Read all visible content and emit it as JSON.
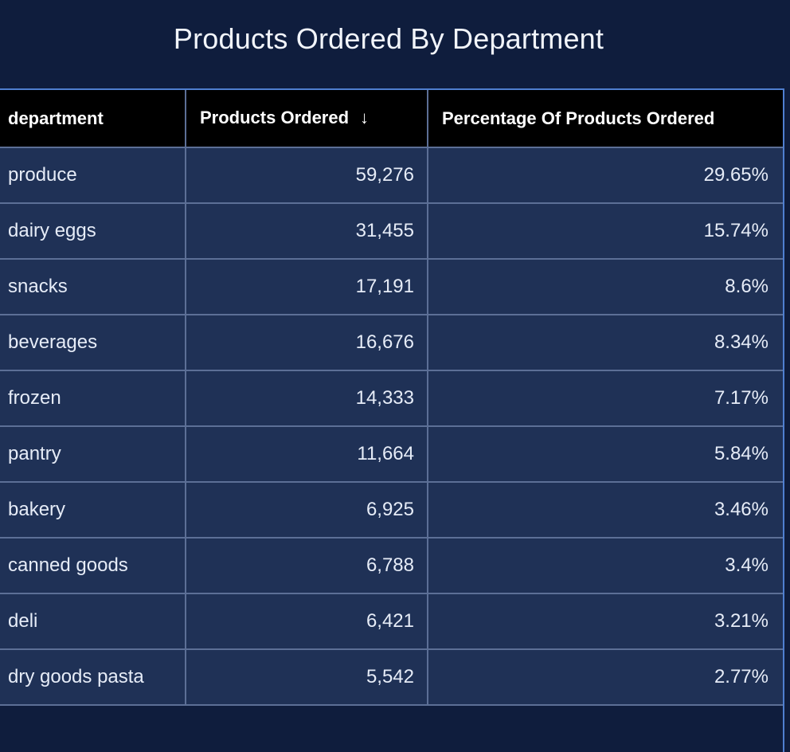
{
  "chart_data": {
    "type": "table",
    "title": "Products Ordered By Department",
    "columns": [
      "department",
      "Products Ordered",
      "Percentage Of Products Ordered"
    ],
    "sort": {
      "column": "Products Ordered",
      "direction": "descending",
      "indicator": "↓"
    },
    "rows": [
      {
        "department": "produce",
        "products_ordered": "59,276",
        "percentage": "29.65%"
      },
      {
        "department": "dairy eggs",
        "products_ordered": "31,455",
        "percentage": "15.74%"
      },
      {
        "department": "snacks",
        "products_ordered": "17,191",
        "percentage": "8.6%"
      },
      {
        "department": "beverages",
        "products_ordered": "16,676",
        "percentage": "8.34%"
      },
      {
        "department": "frozen",
        "products_ordered": "14,333",
        "percentage": "7.17%"
      },
      {
        "department": "pantry",
        "products_ordered": "11,664",
        "percentage": "5.84%"
      },
      {
        "department": "bakery",
        "products_ordered": "6,925",
        "percentage": "3.46%"
      },
      {
        "department": "canned goods",
        "products_ordered": "6,788",
        "percentage": "3.4%"
      },
      {
        "department": "deli",
        "products_ordered": "6,421",
        "percentage": "3.21%"
      },
      {
        "department": "dry goods pasta",
        "products_ordered": "5,542",
        "percentage": "2.77%"
      }
    ]
  },
  "colors": {
    "page_background": "#0f1d3d",
    "header_background": "#000000",
    "row_background": "#1f3156",
    "grid_line": "#5c6f96",
    "frame_accent": "#4f7fd0"
  }
}
